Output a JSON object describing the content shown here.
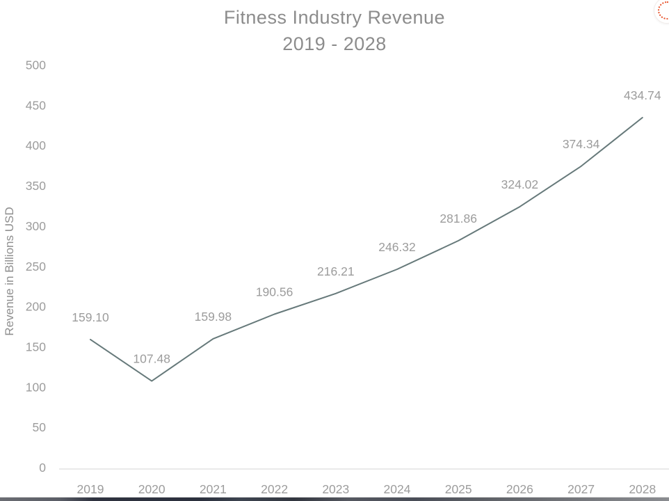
{
  "title": {
    "line1": "Fitness Industry Revenue",
    "line2": "2019 - 2028"
  },
  "chart_data": {
    "type": "line",
    "title": "Fitness Industry Revenue 2019 - 2028",
    "xlabel": "",
    "ylabel": "Revenue in Billions USD",
    "categories": [
      "2019",
      "2020",
      "2021",
      "2022",
      "2023",
      "2024",
      "2025",
      "2026",
      "2027",
      "2028"
    ],
    "values": [
      159.1,
      107.48,
      159.98,
      190.56,
      216.21,
      246.32,
      281.86,
      324.02,
      374.34,
      434.74
    ],
    "point_labels": [
      "159.10",
      "107.48",
      "159.98",
      "190.56",
      "216.21",
      "246.32",
      "281.86",
      "324.02",
      "374.34",
      "434.74"
    ],
    "ylim": [
      0,
      500
    ],
    "yticks": [
      0,
      50,
      100,
      150,
      200,
      250,
      300,
      350,
      400,
      450,
      500
    ],
    "grid": false,
    "legend_position": "none",
    "line_color": "#66797a",
    "axis_line_color": "#e2e2e2",
    "label_color": "#9c9c9c",
    "title_color": "#8c8c8c"
  },
  "decorations": {
    "corner_icon": {
      "name": "floating record indicator",
      "accent_color": "#e8552e"
    }
  }
}
